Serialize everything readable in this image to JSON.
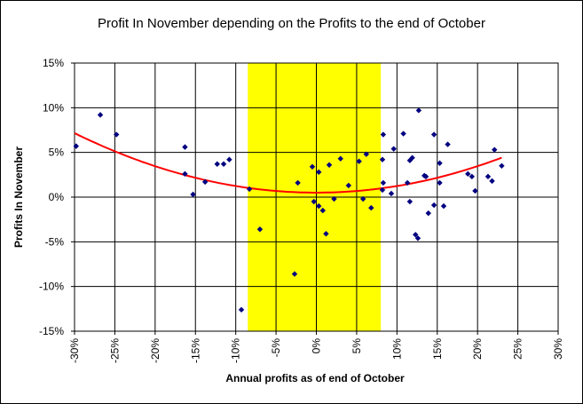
{
  "chart_data": {
    "type": "scatter",
    "title": "Profit In November depending on the Profits to the end of October",
    "xlabel": "Annual profits as of end of October",
    "ylabel": "Profits In November",
    "xlim": [
      -30,
      30
    ],
    "ylim": [
      -15,
      15
    ],
    "x_ticks": [
      "-30%",
      "-25%",
      "-20%",
      "-15%",
      "-10%",
      "-5%",
      "0%",
      "5%",
      "10%",
      "15%",
      "20%",
      "25%",
      "30%"
    ],
    "y_ticks": [
      "15%",
      "10%",
      "5%",
      "0%",
      "-5%",
      "-10%",
      "-15%"
    ],
    "grid": true,
    "highlight_band": {
      "x_range": [
        -8.5,
        8
      ],
      "color": "#ffff00"
    },
    "marker_color": "#000080",
    "trend_color": "#ff0000",
    "points": [
      [
        -29.8,
        5.7
      ],
      [
        -26.8,
        9.2
      ],
      [
        -24.8,
        7.0
      ],
      [
        -16.3,
        5.6
      ],
      [
        -16.3,
        2.6
      ],
      [
        -15.3,
        0.3
      ],
      [
        -13.8,
        1.7
      ],
      [
        -12.3,
        3.7
      ],
      [
        -11.5,
        3.7
      ],
      [
        -10.8,
        4.2
      ],
      [
        -9.3,
        -12.6
      ],
      [
        -8.3,
        0.9
      ],
      [
        -7.0,
        -3.6
      ],
      [
        -2.7,
        -8.6
      ],
      [
        -2.3,
        1.6
      ],
      [
        -0.5,
        3.4
      ],
      [
        -0.3,
        -0.5
      ],
      [
        0.3,
        -1.0
      ],
      [
        0.3,
        2.8
      ],
      [
        0.8,
        -1.5
      ],
      [
        1.2,
        -4.1
      ],
      [
        1.6,
        3.6
      ],
      [
        2.2,
        -0.2
      ],
      [
        3.0,
        4.3
      ],
      [
        4.0,
        1.3
      ],
      [
        5.3,
        4.0
      ],
      [
        5.8,
        -0.2
      ],
      [
        6.2,
        4.8
      ],
      [
        6.8,
        -1.2
      ],
      [
        8.2,
        4.2
      ],
      [
        8.2,
        0.8
      ],
      [
        8.3,
        7.0
      ],
      [
        8.3,
        1.6
      ],
      [
        9.3,
        0.4
      ],
      [
        9.6,
        5.4
      ],
      [
        10.8,
        7.1
      ],
      [
        11.3,
        1.6
      ],
      [
        11.6,
        -0.5
      ],
      [
        11.6,
        4.1
      ],
      [
        11.9,
        4.4
      ],
      [
        12.3,
        -4.2
      ],
      [
        12.6,
        -4.6
      ],
      [
        12.7,
        9.7
      ],
      [
        13.4,
        2.4
      ],
      [
        13.6,
        2.3
      ],
      [
        13.9,
        -1.8
      ],
      [
        14.6,
        7.0
      ],
      [
        14.6,
        -0.9
      ],
      [
        15.3,
        3.8
      ],
      [
        15.3,
        1.6
      ],
      [
        15.8,
        -1.0
      ],
      [
        16.3,
        5.9
      ],
      [
        18.8,
        2.6
      ],
      [
        19.3,
        2.3
      ],
      [
        19.7,
        0.7
      ],
      [
        21.3,
        2.3
      ],
      [
        21.8,
        1.8
      ],
      [
        22.1,
        5.3
      ],
      [
        23.0,
        3.5
      ]
    ],
    "trendline": {
      "type": "polynomial",
      "x_range": [
        -30,
        23
      ],
      "coefficients": [
        0.5,
        0.0,
        0.0074
      ]
    }
  }
}
